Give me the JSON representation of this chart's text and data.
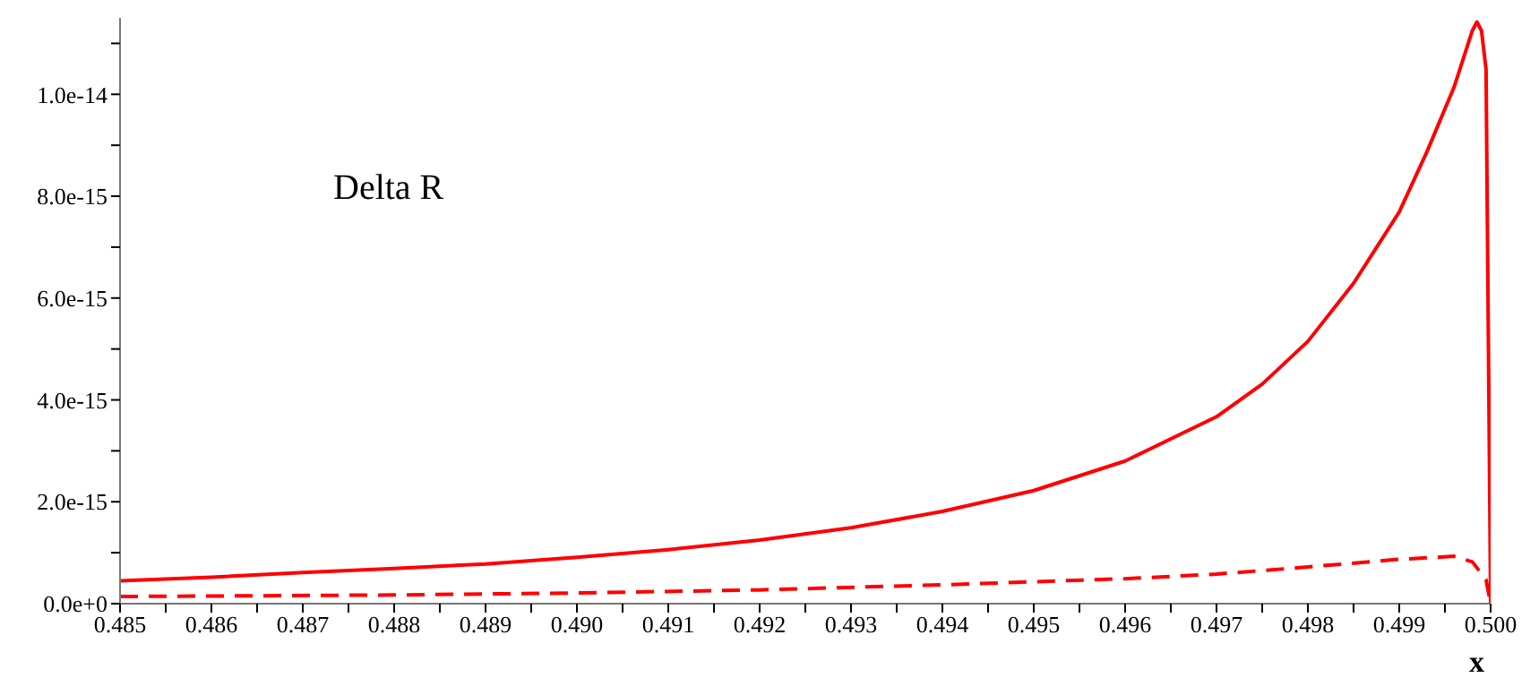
{
  "chart_data": {
    "type": "line",
    "xlabel": "x",
    "annotations": [
      "Delta R"
    ],
    "legend": false,
    "grid": false,
    "marker": "none",
    "xlim": [
      0.485,
      0.5
    ],
    "ylim": [
      0,
      1.15e-14
    ],
    "xticks": [
      {
        "value": 0.485,
        "label": "0.485"
      },
      {
        "value": 0.4855,
        "label": null
      },
      {
        "value": 0.486,
        "label": "0.486"
      },
      {
        "value": 0.4865,
        "label": null
      },
      {
        "value": 0.487,
        "label": "0.487"
      },
      {
        "value": 0.4875,
        "label": null
      },
      {
        "value": 0.488,
        "label": "0.488"
      },
      {
        "value": 0.4885,
        "label": null
      },
      {
        "value": 0.489,
        "label": "0.489"
      },
      {
        "value": 0.4895,
        "label": null
      },
      {
        "value": 0.49,
        "label": "0.490"
      },
      {
        "value": 0.4905,
        "label": null
      },
      {
        "value": 0.491,
        "label": "0.491"
      },
      {
        "value": 0.4915,
        "label": null
      },
      {
        "value": 0.492,
        "label": "0.492"
      },
      {
        "value": 0.4925,
        "label": null
      },
      {
        "value": 0.493,
        "label": "0.493"
      },
      {
        "value": 0.4935,
        "label": null
      },
      {
        "value": 0.494,
        "label": "0.494"
      },
      {
        "value": 0.4945,
        "label": null
      },
      {
        "value": 0.495,
        "label": "0.495"
      },
      {
        "value": 0.4955,
        "label": null
      },
      {
        "value": 0.496,
        "label": "0.496"
      },
      {
        "value": 0.4965,
        "label": null
      },
      {
        "value": 0.497,
        "label": "0.497"
      },
      {
        "value": 0.4975,
        "label": null
      },
      {
        "value": 0.498,
        "label": "0.498"
      },
      {
        "value": 0.4985,
        "label": null
      },
      {
        "value": 0.499,
        "label": "0.499"
      },
      {
        "value": 0.4995,
        "label": null
      },
      {
        "value": 0.5,
        "label": "0.500"
      }
    ],
    "yticks": [
      {
        "value": 0,
        "label": "0.0e+0"
      },
      {
        "value": 1e-15,
        "label": null
      },
      {
        "value": 2e-15,
        "label": "2.0e-15"
      },
      {
        "value": 3e-15,
        "label": null
      },
      {
        "value": 4e-15,
        "label": "4.0e-15"
      },
      {
        "value": 5e-15,
        "label": null
      },
      {
        "value": 6e-15,
        "label": "6.0e-15"
      },
      {
        "value": 7e-15,
        "label": null
      },
      {
        "value": 8e-15,
        "label": "8.0e-15"
      },
      {
        "value": 9e-15,
        "label": null
      },
      {
        "value": 1e-14,
        "label": "1.0e-14"
      },
      {
        "value": 1.1e-14,
        "label": null
      }
    ],
    "series": [
      {
        "color": "#ff0000",
        "line_style": "solid",
        "x": [
          0.485,
          0.486,
          0.487,
          0.488,
          0.489,
          0.49,
          0.491,
          0.492,
          0.493,
          0.494,
          0.495,
          0.496,
          0.497,
          0.4975,
          0.498,
          0.4985,
          0.499,
          0.4993,
          0.4996,
          0.4998,
          0.49985,
          0.4999,
          0.49995,
          0.5
        ],
        "values": [
          4.5e-16,
          5.2e-16,
          6.1e-16,
          6.9e-16,
          7.8e-16,
          9.1e-16,
          1.06e-15,
          1.25e-15,
          1.49e-15,
          1.81e-15,
          2.22e-15,
          2.8e-15,
          3.67e-15,
          4.31e-15,
          5.15e-15,
          6.29e-15,
          7.69e-15,
          8.86e-15,
          1.014e-14,
          1.125e-14,
          1.142e-14,
          1.125e-14,
          1.049e-14,
          0
        ]
      },
      {
        "color": "#ff0000",
        "line_style": "dashed",
        "x": [
          0.485,
          0.488,
          0.49,
          0.492,
          0.494,
          0.495,
          0.496,
          0.497,
          0.498,
          0.499,
          0.4996,
          0.4998,
          0.49995,
          0.5
        ],
        "values": [
          1.4e-16,
          1.7e-16,
          2.1e-16,
          2.7e-16,
          3.7e-16,
          4.3e-16,
          4.9e-16,
          5.8e-16,
          7.2e-16,
          8.7e-16,
          9.3e-16,
          8.2e-16,
          4.7e-16,
          0
        ]
      }
    ]
  }
}
